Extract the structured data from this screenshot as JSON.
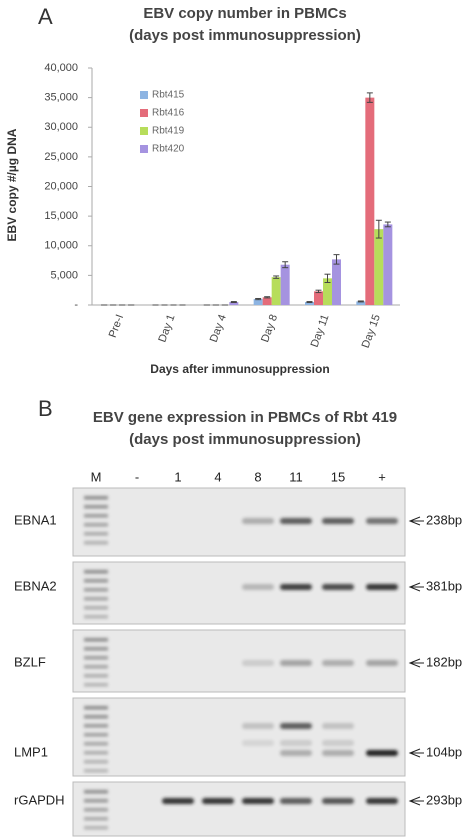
{
  "chart_data": {
    "type": "bar",
    "title": "EBV copy number in PBMCs",
    "subtitle": "(days post immunosuppression)",
    "y_label": "EBV copy #/µg DNA",
    "x_label": "Days after immunosuppression",
    "categories": [
      "Pre-I",
      "Day 1",
      "Day 4",
      "Day 8",
      "Day 11",
      "Day 15"
    ],
    "series": [
      {
        "name": "Rbt415",
        "color": "#8db4e2",
        "values": [
          0,
          0,
          0,
          1000,
          500,
          600
        ],
        "errors": [
          0,
          0,
          0,
          100,
          80,
          80
        ]
      },
      {
        "name": "Rbt416",
        "color": "#e46c7a",
        "values": [
          0,
          0,
          0,
          1300,
          2300,
          35000
        ],
        "errors": [
          0,
          0,
          0,
          100,
          200,
          800
        ]
      },
      {
        "name": "Rbt419",
        "color": "#b7dd5b",
        "values": [
          0,
          0,
          0,
          4700,
          4500,
          12800
        ],
        "errors": [
          0,
          0,
          0,
          200,
          700,
          1500
        ]
      },
      {
        "name": "Rbt420",
        "color": "#a593e0",
        "values": [
          0,
          0,
          500,
          6800,
          7700,
          13600
        ],
        "errors": [
          0,
          0,
          80,
          500,
          800,
          400
        ]
      }
    ],
    "ylim": [
      0,
      40000
    ],
    "yticks": [
      {
        "value": 0,
        "label": "-"
      },
      {
        "value": 5000,
        "label": "5,000"
      },
      {
        "value": 10000,
        "label": "10,000"
      },
      {
        "value": 15000,
        "label": "15,000"
      },
      {
        "value": 20000,
        "label": "20,000"
      },
      {
        "value": 25000,
        "label": "25,000"
      },
      {
        "value": 30000,
        "label": "30,000"
      },
      {
        "value": 35000,
        "label": "35,000"
      },
      {
        "value": 40000,
        "label": "40,000"
      }
    ],
    "grid": false,
    "legend": "upper left"
  },
  "panel_a": "A",
  "panel_b": {
    "label": "B",
    "title": "EBV gene expression in PBMCs of  Rbt 419",
    "subtitle": "(days post immunosuppression)",
    "lanes": [
      "M",
      "-",
      "1",
      "4",
      "8",
      "11",
      "15",
      "+"
    ],
    "rows": [
      {
        "gene": "EBNA1",
        "size": "238bp"
      },
      {
        "gene": "EBNA2",
        "size": "381bp"
      },
      {
        "gene": "BZLF",
        "size": "182bp"
      },
      {
        "gene": "LMP1",
        "size": "104bp"
      },
      {
        "gene": "rGAPDH",
        "size": "293bp"
      }
    ]
  }
}
